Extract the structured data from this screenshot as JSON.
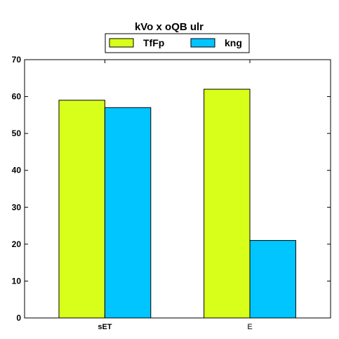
{
  "chart_data": {
    "type": "bar",
    "title": "kVo x oQB ulr",
    "categories": [
      "sET",
      "E"
    ],
    "series": [
      {
        "name": "TfFp",
        "values": [
          59,
          62
        ],
        "color": "#d8ff1a"
      },
      {
        "name": "kng",
        "values": [
          57,
          21
        ],
        "color": "#00c5ff"
      }
    ],
    "ylim": [
      0,
      70
    ],
    "yticks": [
      0,
      10,
      20,
      30,
      40,
      50,
      60,
      70
    ],
    "xlabel": "",
    "ylabel": "",
    "grid": false,
    "legend_position": "top-center"
  }
}
